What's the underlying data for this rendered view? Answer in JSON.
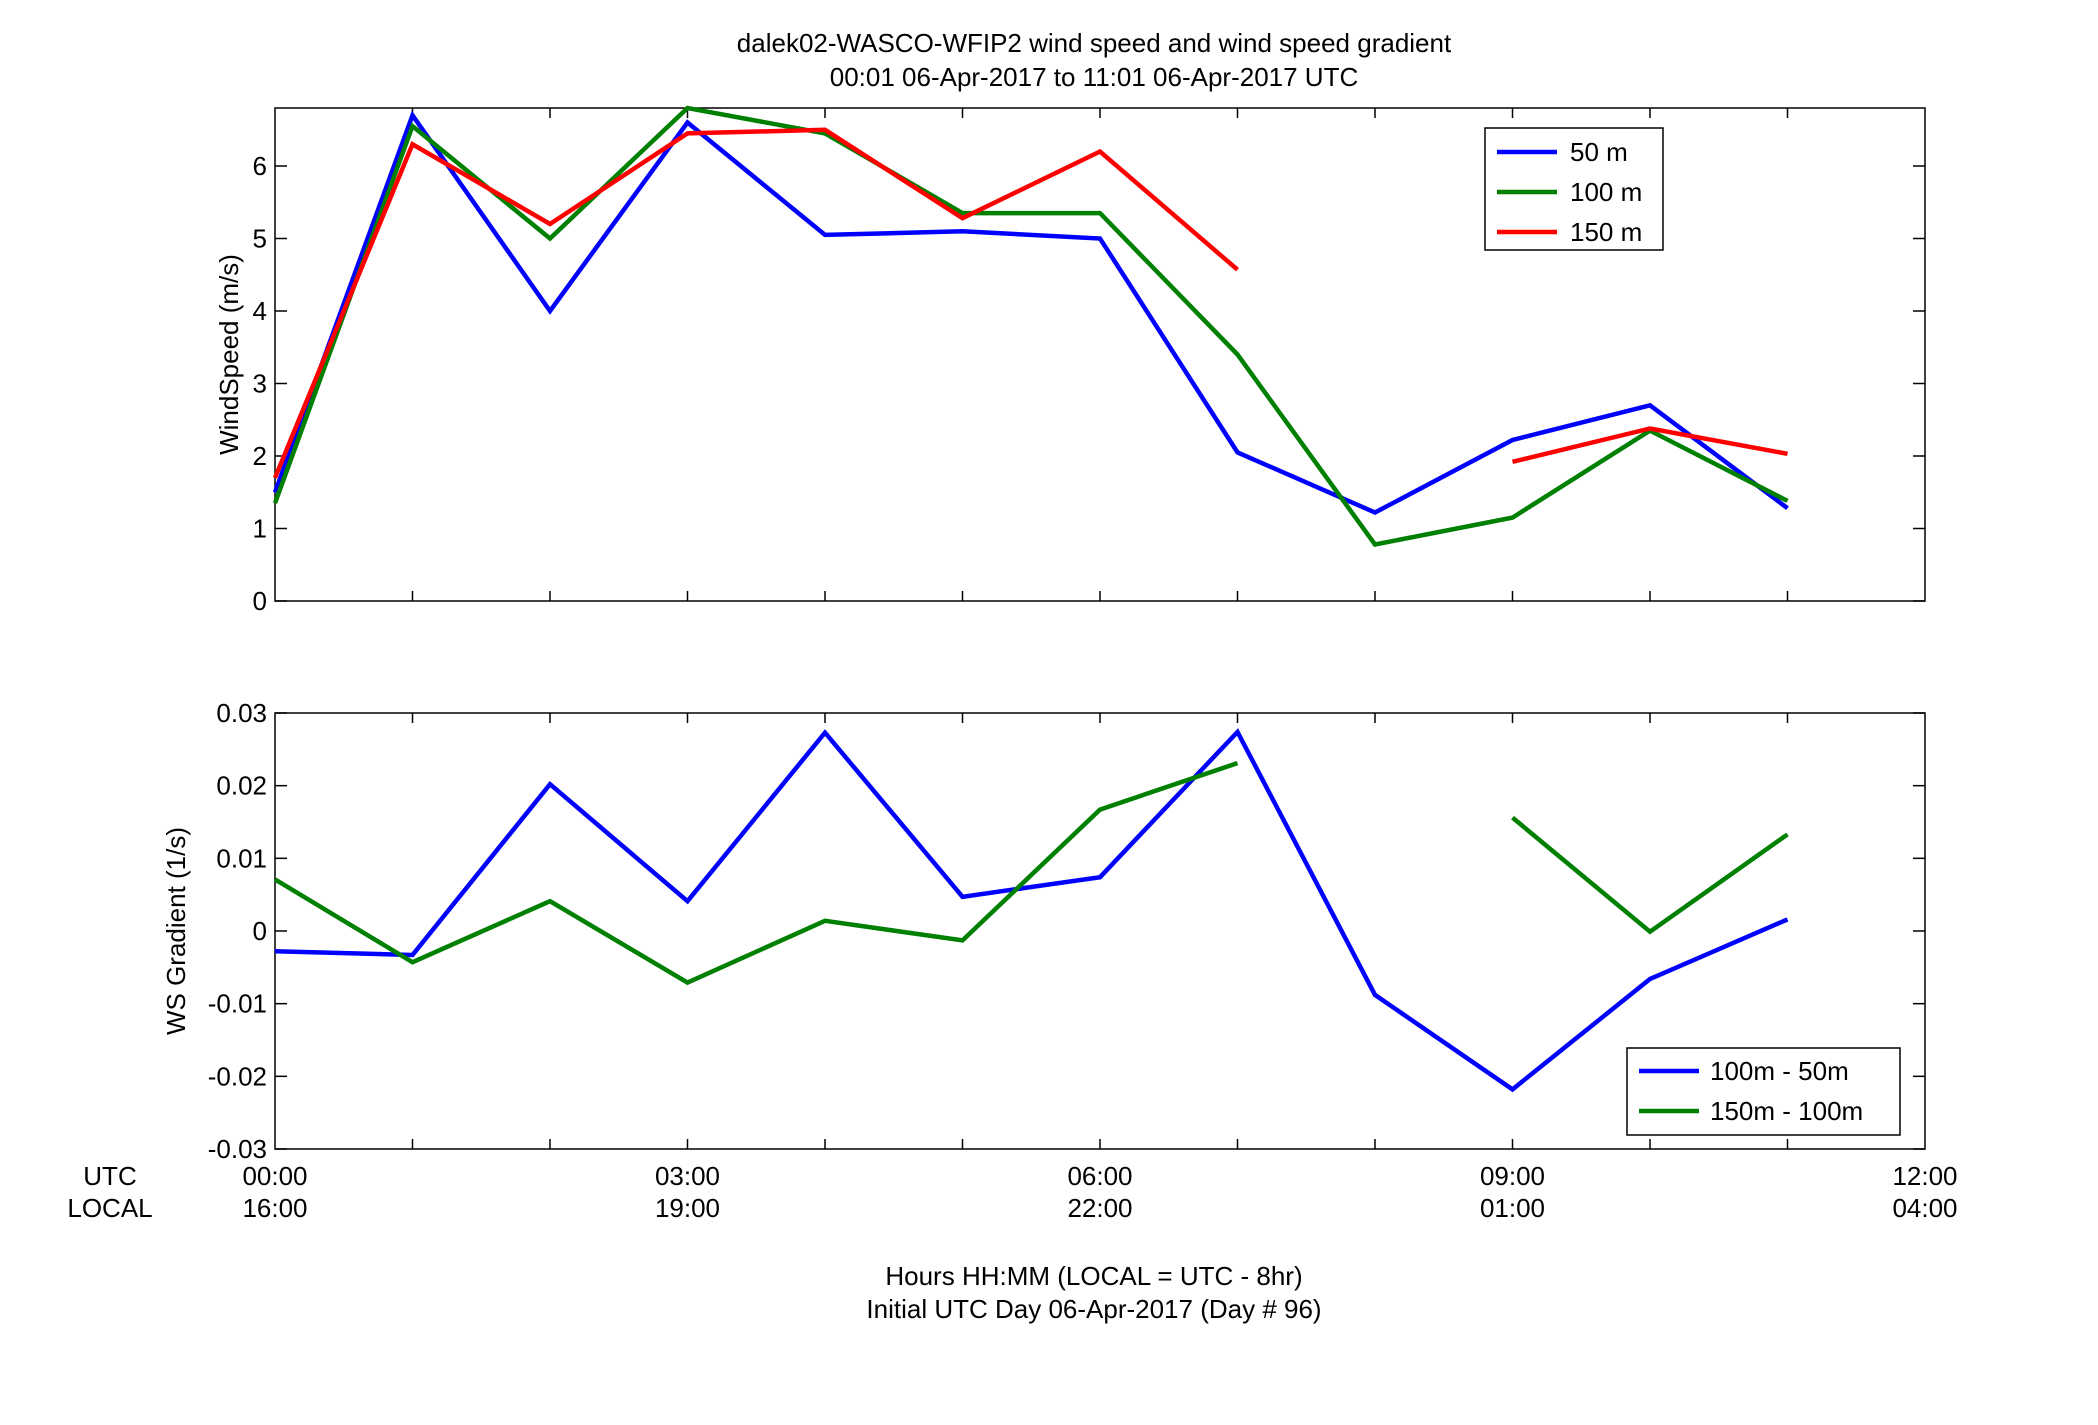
{
  "chart_data": [
    {
      "type": "line",
      "title": "dalek02-WASCO-WFIP2  wind speed and wind speed gradient",
      "subtitle": "00:01 06-Apr-2017 to 11:01 06-Apr-2017  UTC",
      "xlabel": "",
      "ylabel": "WindSpeed (m/s)",
      "xlim": [
        0,
        12
      ],
      "ylim": [
        0,
        6.8
      ],
      "yticks": [
        "0",
        "1",
        "2",
        "3",
        "4",
        "5",
        "6"
      ],
      "grid": false,
      "legend_position": "top-right",
      "x": [
        0,
        1,
        2,
        3,
        4,
        5,
        6,
        7,
        8,
        9,
        10,
        11
      ],
      "series": [
        {
          "name": "50 m",
          "color": "#0000ff",
          "values": [
            1.5,
            6.7,
            4.0,
            6.6,
            5.05,
            5.1,
            5.0,
            2.05,
            1.22,
            2.22,
            2.7,
            1.28
          ]
        },
        {
          "name": "100 m",
          "color": "#008000",
          "values": [
            1.35,
            6.55,
            5.0,
            6.8,
            6.45,
            5.35,
            5.35,
            3.4,
            0.78,
            1.15,
            2.35,
            1.38
          ]
        },
        {
          "name": "150 m",
          "color": "#ff0000",
          "values": [
            1.7,
            6.3,
            5.2,
            6.45,
            6.5,
            5.28,
            6.2,
            4.57,
            null,
            1.92,
            2.38,
            2.03
          ]
        }
      ]
    },
    {
      "type": "line",
      "title": "",
      "xlabel": "Hours HH:MM  (LOCAL = UTC - 8hr)",
      "xlabel2": "Initial UTC Day 06-Apr-2017 (Day # 96)",
      "ylabel": "WS Gradient (1/s)",
      "xlim": [
        0,
        12
      ],
      "ylim": [
        -0.03,
        0.03
      ],
      "yticks": [
        "-0.03",
        "-0.02",
        "-0.01",
        "0",
        "0.01",
        "0.02",
        "0.03"
      ],
      "grid": false,
      "legend_position": "bottom-right",
      "x": [
        0,
        1,
        2,
        3,
        4,
        5,
        6,
        7,
        8,
        9,
        10,
        11
      ],
      "series": [
        {
          "name": "100m - 50m",
          "color": "#0000ff",
          "values": [
            -0.0028,
            -0.0033,
            0.0202,
            0.0041,
            0.0273,
            0.0047,
            0.0074,
            0.0274,
            -0.0088,
            -0.0218,
            -0.0066,
            0.0016
          ]
        },
        {
          "name": "150m - 100m",
          "color": "#008000",
          "values": [
            0.0071,
            -0.0043,
            0.0041,
            -0.0071,
            0.0014,
            -0.0013,
            0.0167,
            0.0231,
            null,
            0.0156,
            -0.0001,
            0.0133
          ]
        }
      ]
    }
  ],
  "time_axis": {
    "utc_label": "UTC",
    "local_label": "LOCAL",
    "ticks": [
      {
        "x": 0,
        "utc": "00:00",
        "local": "16:00"
      },
      {
        "x": 3,
        "utc": "03:00",
        "local": "19:00"
      },
      {
        "x": 6,
        "utc": "06:00",
        "local": "22:00"
      },
      {
        "x": 9,
        "utc": "09:00",
        "local": "01:00"
      },
      {
        "x": 12,
        "utc": "12:00",
        "local": "04:00"
      }
    ]
  }
}
